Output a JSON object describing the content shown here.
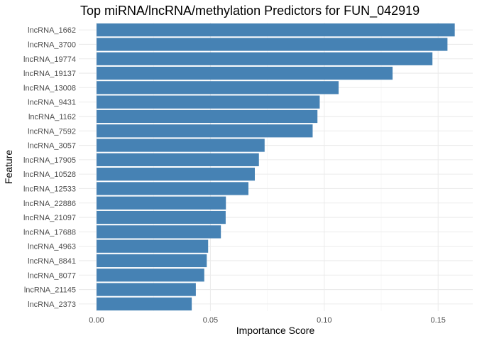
{
  "chart_data": {
    "type": "bar",
    "orientation": "horizontal",
    "title": "Top miRNA/lncRNA/methylation Predictors for FUN_042919",
    "xlabel": "Importance Score",
    "ylabel": "Feature",
    "xlim": [
      -0.0078,
      0.1652
    ],
    "xticks": [
      0.0,
      0.05,
      0.1,
      0.15
    ],
    "xtick_labels": [
      "0.00",
      "0.05",
      "0.10",
      "0.15"
    ],
    "grid": true,
    "legend": "none",
    "bar_color": "#4682B4",
    "categories": [
      "lncRNA_1662",
      "lncRNA_3700",
      "lncRNA_19774",
      "lncRNA_19137",
      "lncRNA_13008",
      "lncRNA_9431",
      "lncRNA_1162",
      "lncRNA_7592",
      "lncRNA_3057",
      "lncRNA_17905",
      "lncRNA_10528",
      "lncRNA_12533",
      "lncRNA_22886",
      "lncRNA_21097",
      "lncRNA_17688",
      "lncRNA_4963",
      "lncRNA_8841",
      "lncRNA_8077",
      "lncRNA_21145",
      "lncRNA_2373"
    ],
    "values": [
      0.1573,
      0.1541,
      0.1475,
      0.13,
      0.1063,
      0.098,
      0.097,
      0.0949,
      0.0738,
      0.0713,
      0.0695,
      0.0667,
      0.0568,
      0.0567,
      0.0546,
      0.049,
      0.0484,
      0.0473,
      0.0436,
      0.0418
    ]
  }
}
